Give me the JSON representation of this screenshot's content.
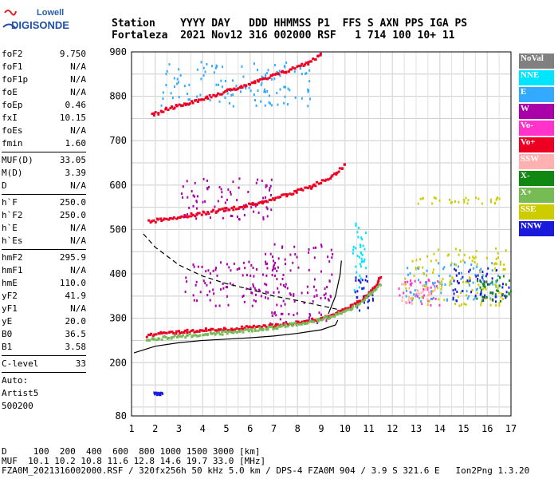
{
  "logo": {
    "line1": "Lowell",
    "line2": "DIGISONDE"
  },
  "header": {
    "line1": "Station    YYYY DAY   DDD HHMMSS P1  FFS S AXN PPS IGA PS",
    "line2": "Fortaleza  2021 Nov12 316 002000 RSF   1 714 100 10+ 11"
  },
  "params": {
    "group1": [
      {
        "k": "foF2",
        "v": "9.750"
      },
      {
        "k": "foF1",
        "v": "N/A"
      },
      {
        "k": "foF1p",
        "v": "N/A"
      },
      {
        "k": "foE",
        "v": "N/A"
      },
      {
        "k": "foEp",
        "v": "0.46"
      },
      {
        "k": "fxI",
        "v": "10.15"
      },
      {
        "k": "foEs",
        "v": "N/A"
      },
      {
        "k": "fmin",
        "v": "1.60"
      }
    ],
    "group2": [
      {
        "k": "MUF(D)",
        "v": "33.05"
      },
      {
        "k": "M(D)",
        "v": "3.39"
      },
      {
        "k": "D",
        "v": "N/A"
      }
    ],
    "group3": [
      {
        "k": "h`F",
        "v": "250.0"
      },
      {
        "k": "h`F2",
        "v": "250.0"
      },
      {
        "k": "h`E",
        "v": "N/A"
      },
      {
        "k": "h`Es",
        "v": "N/A"
      }
    ],
    "group4": [
      {
        "k": "hmF2",
        "v": "295.9"
      },
      {
        "k": "hmF1",
        "v": "N/A"
      },
      {
        "k": "hmE",
        "v": "110.0"
      },
      {
        "k": "yF2",
        "v": "41.9"
      },
      {
        "k": "yF1",
        "v": "N/A"
      },
      {
        "k": "yE",
        "v": "20.0"
      },
      {
        "k": "B0",
        "v": "36.5"
      },
      {
        "k": "B1",
        "v": "3.58"
      }
    ],
    "group5": [
      {
        "k": "C-level",
        "v": "33"
      }
    ],
    "auto": [
      "Auto:",
      "Artist5",
      "500200"
    ]
  },
  "legend": [
    {
      "label": "NoVal",
      "color": "#808080"
    },
    {
      "label": "NNE",
      "color": "#00e5ff"
    },
    {
      "label": "E",
      "color": "#33aaff"
    },
    {
      "label": "W",
      "color": "#aa00aa"
    },
    {
      "label": "Vo-",
      "color": "#ff33cc"
    },
    {
      "label": "Vo+",
      "color": "#ee0022"
    },
    {
      "label": "SSW",
      "color": "#ffb0b0"
    },
    {
      "label": "X-",
      "color": "#118811"
    },
    {
      "label": "X+",
      "color": "#77bb55"
    },
    {
      "label": "SSE",
      "color": "#cccc00"
    },
    {
      "label": "NNW",
      "color": "#1a1adc"
    }
  ],
  "footer": {
    "line1": "D     100  200  400  600  800 1000 1500 3000 [km]",
    "line2": "MUF  10.1 10.2 10.8 11.6 12.8 14.6 19.7 33.0 [MHz]",
    "line3": "FZA0M_2021316002000.RSF / 320fx256h 50 kHz 5.0 km / DPS-4 FZA0M 904 / 3.9 S 321.6 E   Ion2Png 1.3.20"
  },
  "chart_data": {
    "type": "scatter",
    "xlim": [
      1,
      17
    ],
    "ylim": [
      80,
      900
    ],
    "xticks": [
      1,
      2,
      3,
      4,
      5,
      6,
      7,
      8,
      9,
      10,
      11,
      12,
      13,
      14,
      15,
      16,
      17
    ],
    "yticks": [
      80,
      200,
      300,
      400,
      500,
      600,
      700,
      800,
      900
    ],
    "grid": true,
    "traces": [
      {
        "name": "F2 O-trace",
        "color": "#ee0022",
        "x": [
          1.6,
          2.0,
          3.0,
          4.0,
          5.0,
          6.0,
          7.0,
          8.0,
          9.0,
          9.5,
          10.0,
          10.4,
          10.8,
          11.2,
          11.5
        ],
        "y": [
          262,
          268,
          272,
          276,
          278,
          282,
          287,
          293,
          303,
          312,
          322,
          335,
          350,
          372,
          400
        ]
      },
      {
        "name": "2F2 O-trace",
        "color": "#ee0022",
        "x": [
          1.7,
          2.5,
          3.5,
          4.5,
          5.5,
          6.5,
          7.5,
          8.5,
          9.5,
          10.0
        ],
        "y": [
          520,
          528,
          535,
          544,
          553,
          565,
          580,
          598,
          625,
          650
        ]
      },
      {
        "name": "3F2 O-trace",
        "color": "#ee0022",
        "x": [
          1.8,
          2.5,
          3.5,
          4.5,
          5.5,
          6.5,
          7.5,
          8.5,
          9.0
        ],
        "y": [
          760,
          775,
          790,
          806,
          823,
          840,
          860,
          880,
          900
        ]
      },
      {
        "name": "X trace",
        "color": "#77bb55",
        "x": [
          1.6,
          3.0,
          5.0,
          7.0,
          9.0,
          10.5,
          11.5
        ],
        "y": [
          255,
          262,
          270,
          282,
          300,
          330,
          380
        ]
      },
      {
        "name": "profile lower",
        "color": "#000000",
        "x": [
          1.1,
          2.0,
          3.0,
          4.0,
          5.0,
          6.0,
          7.0,
          8.0,
          9.0,
          9.6,
          9.7
        ],
        "y": [
          222,
          237,
          245,
          250,
          253,
          256,
          260,
          266,
          274,
          285,
          296
        ]
      },
      {
        "name": "profile upper",
        "color": "#000000",
        "x": [
          9.3,
          9.6,
          9.8,
          9.85
        ],
        "y": [
          310,
          350,
          400,
          430
        ]
      },
      {
        "name": "model dashed",
        "color": "#000000",
        "x": [
          1.5,
          2.0,
          3.0,
          4.0,
          5.0,
          6.0,
          7.0,
          8.0,
          9.0,
          9.7
        ],
        "y": [
          490,
          460,
          420,
          395,
          378,
          365,
          350,
          340,
          328,
          320
        ]
      }
    ],
    "clusters": [
      {
        "color": "#aa00aa",
        "xr": [
          3.2,
          7.5
        ],
        "yr": [
          330,
          430
        ]
      },
      {
        "color": "#ff33cc",
        "xr": [
          12.2,
          14.0
        ],
        "yr": [
          330,
          390
        ]
      },
      {
        "color": "#ffb0b0",
        "xr": [
          12.3,
          13.8
        ],
        "yr": [
          335,
          380
        ]
      },
      {
        "color": "#33aaff",
        "xr": [
          12.5,
          16.5
        ],
        "yr": [
          340,
          430
        ]
      },
      {
        "color": "#cccc00",
        "xr": [
          12.5,
          16.8
        ],
        "yr": [
          330,
          460
        ]
      },
      {
        "color": "#1a1adc",
        "xr": [
          14.5,
          17.0
        ],
        "yr": [
          340,
          420
        ]
      },
      {
        "color": "#118811",
        "xr": [
          15.5,
          17.0
        ],
        "yr": [
          340,
          400
        ]
      },
      {
        "color": "#cccc00",
        "xr": [
          13.0,
          16.5
        ],
        "yr": [
          560,
          575
        ]
      },
      {
        "color": "#00e5ff",
        "xr": [
          10.3,
          10.9
        ],
        "yr": [
          360,
          520
        ]
      },
      {
        "color": "#1a1adc",
        "xr": [
          10.4,
          11.2
        ],
        "yr": [
          320,
          400
        ]
      },
      {
        "color": "#aa00aa",
        "xr": [
          3.0,
          7.0
        ],
        "yr": [
          525,
          620
        ]
      },
      {
        "color": "#33aaff",
        "xr": [
          2.2,
          8.5
        ],
        "yr": [
          780,
          880
        ]
      },
      {
        "color": "#aa00aa",
        "xr": [
          6.5,
          9.5
        ],
        "yr": [
          290,
          470
        ]
      },
      {
        "color": "#1a1adc",
        "xr": [
          1.9,
          2.3
        ],
        "yr": [
          130,
          135
        ]
      }
    ]
  }
}
